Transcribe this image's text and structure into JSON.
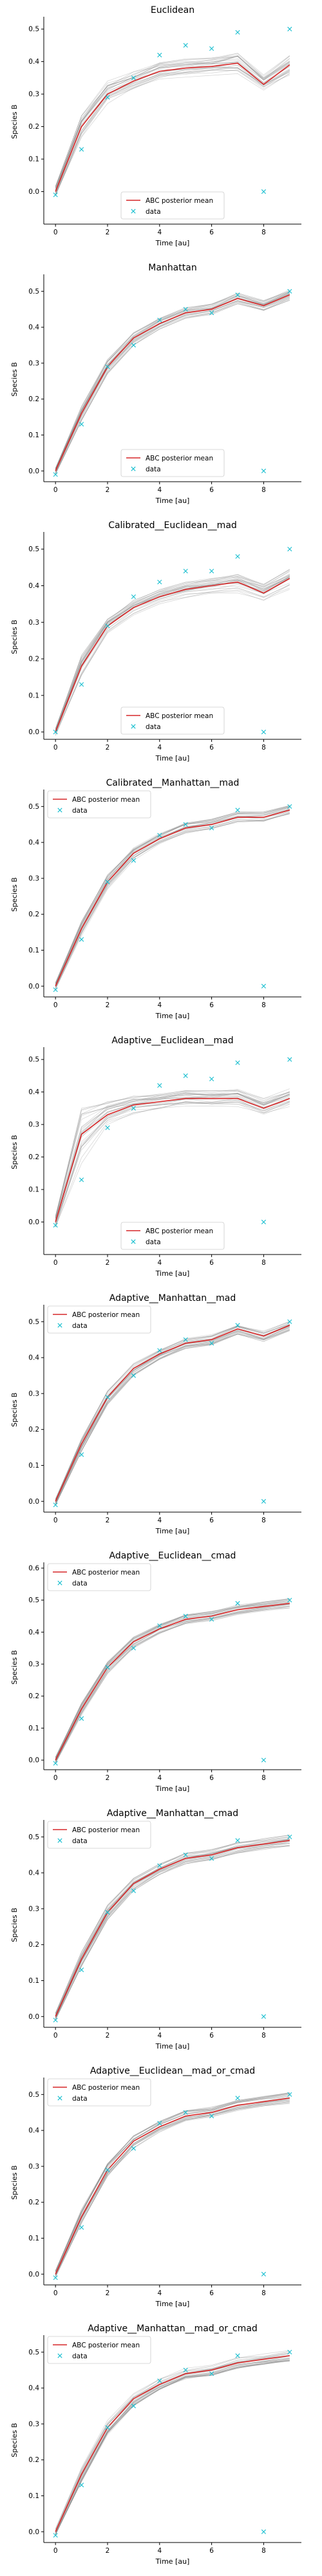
{
  "chart_data": [
    {
      "type": "line",
      "title": "Euclidean",
      "xlabel": "Time [au]",
      "ylabel": "Species B",
      "xlim": [
        -0.45,
        9.45
      ],
      "ylim": [
        -0.1,
        0.53
      ],
      "yticks": [
        0.0,
        0.1,
        0.2,
        0.3,
        0.4,
        0.5
      ],
      "xticks": [
        0,
        2,
        4,
        6,
        8
      ],
      "legend_position": "lower-center",
      "x": [
        0,
        1,
        2,
        3,
        4,
        5,
        6,
        7,
        8,
        9
      ],
      "series": [
        {
          "name": "ABC posterior mean",
          "values": [
            0.0,
            0.2,
            0.3,
            0.34,
            0.37,
            0.38,
            0.385,
            0.395,
            0.33,
            0.39
          ]
        },
        {
          "name": "data",
          "values": [
            -0.01,
            0.13,
            0.29,
            0.35,
            0.42,
            0.45,
            0.44,
            0.49,
            0.0,
            0.5
          ]
        }
      ],
      "band": {
        "lower": [
          -0.02,
          0.16,
          0.27,
          0.31,
          0.34,
          0.35,
          0.355,
          0.36,
          0.31,
          0.35
        ],
        "upper": [
          0.02,
          0.24,
          0.34,
          0.37,
          0.4,
          0.41,
          0.415,
          0.43,
          0.36,
          0.42
        ]
      }
    },
    {
      "type": "line",
      "title": "Manhattan",
      "xlabel": "Time [au]",
      "ylabel": "Species B",
      "xlim": [
        -0.45,
        9.45
      ],
      "ylim": [
        -0.03,
        0.54
      ],
      "yticks": [
        0.0,
        0.1,
        0.2,
        0.3,
        0.4,
        0.5
      ],
      "xticks": [
        0,
        2,
        4,
        6,
        8
      ],
      "legend_position": "lower-center",
      "x": [
        0,
        1,
        2,
        3,
        4,
        5,
        6,
        7,
        8,
        9
      ],
      "series": [
        {
          "name": "ABC posterior mean",
          "values": [
            0.0,
            0.16,
            0.29,
            0.37,
            0.41,
            0.44,
            0.45,
            0.48,
            0.46,
            0.49
          ]
        },
        {
          "name": "data",
          "values": [
            -0.01,
            0.13,
            0.29,
            0.35,
            0.42,
            0.45,
            0.44,
            0.49,
            0.0,
            0.5
          ]
        }
      ],
      "band": {
        "lower": [
          -0.01,
          0.14,
          0.27,
          0.35,
          0.395,
          0.425,
          0.435,
          0.465,
          0.445,
          0.475
        ],
        "upper": [
          0.01,
          0.18,
          0.31,
          0.385,
          0.425,
          0.455,
          0.465,
          0.495,
          0.475,
          0.505
        ]
      }
    },
    {
      "type": "line",
      "title": "Calibrated__Euclidean__mad",
      "xlabel": "Time [au]",
      "ylabel": "Species B",
      "xlim": [
        -0.45,
        9.45
      ],
      "ylim": [
        -0.02,
        0.54
      ],
      "yticks": [
        0.0,
        0.1,
        0.2,
        0.3,
        0.4,
        0.5
      ],
      "xticks": [
        0,
        2,
        4,
        6,
        8
      ],
      "legend_position": "lower-center",
      "x": [
        0,
        1,
        2,
        3,
        4,
        5,
        6,
        7,
        8,
        9
      ],
      "series": [
        {
          "name": "ABC posterior mean",
          "values": [
            0.0,
            0.18,
            0.29,
            0.34,
            0.37,
            0.39,
            0.4,
            0.41,
            0.38,
            0.42
          ]
        },
        {
          "name": "data",
          "values": [
            0.0,
            0.13,
            0.29,
            0.37,
            0.41,
            0.44,
            0.44,
            0.48,
            0.0,
            0.5
          ]
        }
      ],
      "band": {
        "lower": [
          -0.01,
          0.15,
          0.27,
          0.32,
          0.35,
          0.365,
          0.375,
          0.38,
          0.355,
          0.39
        ],
        "upper": [
          0.01,
          0.21,
          0.31,
          0.36,
          0.39,
          0.41,
          0.42,
          0.435,
          0.405,
          0.445
        ]
      }
    },
    {
      "type": "line",
      "title": "Calibrated__Manhattan__mad",
      "xlabel": "Time [au]",
      "ylabel": "Species B",
      "xlim": [
        -0.45,
        9.45
      ],
      "ylim": [
        -0.03,
        0.54
      ],
      "yticks": [
        0.0,
        0.1,
        0.2,
        0.3,
        0.4,
        0.5
      ],
      "xticks": [
        0,
        2,
        4,
        6,
        8
      ],
      "legend_position": "upper-left",
      "x": [
        0,
        1,
        2,
        3,
        4,
        5,
        6,
        7,
        8,
        9
      ],
      "series": [
        {
          "name": "ABC posterior mean",
          "values": [
            0.0,
            0.16,
            0.29,
            0.37,
            0.41,
            0.44,
            0.45,
            0.47,
            0.47,
            0.49
          ]
        },
        {
          "name": "data",
          "values": [
            -0.01,
            0.13,
            0.29,
            0.35,
            0.42,
            0.45,
            0.44,
            0.49,
            0.0,
            0.5
          ]
        }
      ],
      "band": {
        "lower": [
          -0.01,
          0.14,
          0.27,
          0.35,
          0.395,
          0.425,
          0.435,
          0.455,
          0.455,
          0.475
        ],
        "upper": [
          0.01,
          0.18,
          0.31,
          0.385,
          0.425,
          0.455,
          0.465,
          0.485,
          0.485,
          0.505
        ]
      }
    },
    {
      "type": "line",
      "title": "Adaptive__Euclidean__mad",
      "xlabel": "Time [au]",
      "ylabel": "Species B",
      "xlim": [
        -0.45,
        9.45
      ],
      "ylim": [
        -0.1,
        0.53
      ],
      "yticks": [
        0.0,
        0.1,
        0.2,
        0.3,
        0.4,
        0.5
      ],
      "xticks": [
        0,
        2,
        4,
        6,
        8
      ],
      "legend_position": "lower-center",
      "x": [
        0,
        1,
        2,
        3,
        4,
        5,
        6,
        7,
        8,
        9
      ],
      "series": [
        {
          "name": "ABC posterior mean",
          "values": [
            0.0,
            0.27,
            0.33,
            0.36,
            0.37,
            0.38,
            0.38,
            0.38,
            0.35,
            0.38
          ]
        },
        {
          "name": "data",
          "values": [
            -0.01,
            0.13,
            0.29,
            0.35,
            0.42,
            0.45,
            0.44,
            0.49,
            0.0,
            0.5
          ]
        }
      ],
      "band": {
        "lower": [
          -0.02,
          0.18,
          0.3,
          0.33,
          0.345,
          0.355,
          0.355,
          0.355,
          0.325,
          0.355
        ],
        "upper": [
          0.02,
          0.35,
          0.37,
          0.39,
          0.395,
          0.405,
          0.405,
          0.41,
          0.38,
          0.41
        ]
      }
    },
    {
      "type": "line",
      "title": "Adaptive__Manhattan__mad",
      "xlabel": "Time [au]",
      "ylabel": "Species B",
      "xlim": [
        -0.45,
        9.45
      ],
      "ylim": [
        -0.03,
        0.54
      ],
      "yticks": [
        0.0,
        0.1,
        0.2,
        0.3,
        0.4,
        0.5
      ],
      "xticks": [
        0,
        2,
        4,
        6,
        8
      ],
      "legend_position": "upper-left",
      "x": [
        0,
        1,
        2,
        3,
        4,
        5,
        6,
        7,
        8,
        9
      ],
      "series": [
        {
          "name": "ABC posterior mean",
          "values": [
            0.0,
            0.16,
            0.29,
            0.37,
            0.41,
            0.44,
            0.45,
            0.48,
            0.46,
            0.49
          ]
        },
        {
          "name": "data",
          "values": [
            -0.01,
            0.13,
            0.29,
            0.35,
            0.42,
            0.45,
            0.44,
            0.49,
            0.0,
            0.5
          ]
        }
      ],
      "band": {
        "lower": [
          -0.01,
          0.14,
          0.27,
          0.35,
          0.395,
          0.425,
          0.435,
          0.465,
          0.445,
          0.475
        ],
        "upper": [
          0.01,
          0.18,
          0.31,
          0.385,
          0.425,
          0.455,
          0.465,
          0.495,
          0.475,
          0.505
        ]
      }
    },
    {
      "type": "line",
      "title": "Adaptive__Euclidean__cmad",
      "xlabel": "Time [au]",
      "ylabel": "Species B",
      "xlim": [
        -0.45,
        9.45
      ],
      "ylim": [
        -0.03,
        0.61
      ],
      "yticks": [
        0.0,
        0.1,
        0.2,
        0.3,
        0.4,
        0.5,
        0.6
      ],
      "xticks": [
        0,
        2,
        4,
        6,
        8
      ],
      "legend_position": "upper-left",
      "x": [
        0,
        1,
        2,
        3,
        4,
        5,
        6,
        7,
        8,
        9
      ],
      "series": [
        {
          "name": "ABC posterior mean",
          "values": [
            0.0,
            0.16,
            0.29,
            0.37,
            0.41,
            0.44,
            0.45,
            0.47,
            0.48,
            0.49
          ]
        },
        {
          "name": "data",
          "values": [
            -0.01,
            0.13,
            0.29,
            0.35,
            0.42,
            0.45,
            0.44,
            0.49,
            0.0,
            0.5
          ]
        }
      ],
      "band": {
        "lower": [
          -0.01,
          0.14,
          0.27,
          0.35,
          0.395,
          0.425,
          0.435,
          0.455,
          0.465,
          0.475
        ],
        "upper": [
          0.01,
          0.18,
          0.31,
          0.385,
          0.425,
          0.455,
          0.465,
          0.485,
          0.495,
          0.505
        ]
      }
    },
    {
      "type": "line",
      "title": "Adaptive__Manhattan__cmad",
      "xlabel": "Time [au]",
      "ylabel": "Species B",
      "xlim": [
        -0.45,
        9.45
      ],
      "ylim": [
        -0.03,
        0.54
      ],
      "yticks": [
        0.0,
        0.1,
        0.2,
        0.3,
        0.4,
        0.5
      ],
      "xticks": [
        0,
        2,
        4,
        6,
        8
      ],
      "legend_position": "upper-left",
      "x": [
        0,
        1,
        2,
        3,
        4,
        5,
        6,
        7,
        8,
        9
      ],
      "series": [
        {
          "name": "ABC posterior mean",
          "values": [
            0.0,
            0.16,
            0.29,
            0.37,
            0.41,
            0.44,
            0.45,
            0.47,
            0.48,
            0.49
          ]
        },
        {
          "name": "data",
          "values": [
            -0.01,
            0.13,
            0.29,
            0.35,
            0.42,
            0.45,
            0.44,
            0.49,
            0.0,
            0.5
          ]
        }
      ],
      "band": {
        "lower": [
          -0.01,
          0.14,
          0.27,
          0.35,
          0.395,
          0.425,
          0.435,
          0.455,
          0.465,
          0.475
        ],
        "upper": [
          0.01,
          0.18,
          0.31,
          0.385,
          0.425,
          0.455,
          0.465,
          0.485,
          0.495,
          0.505
        ]
      }
    },
    {
      "type": "line",
      "title": "Adaptive__Euclidean__mad_or_cmad",
      "xlabel": "Time [au]",
      "ylabel": "Species B",
      "xlim": [
        -0.45,
        9.45
      ],
      "ylim": [
        -0.03,
        0.54
      ],
      "yticks": [
        0.0,
        0.1,
        0.2,
        0.3,
        0.4,
        0.5
      ],
      "xticks": [
        0,
        2,
        4,
        6,
        8
      ],
      "legend_position": "upper-left",
      "x": [
        0,
        1,
        2,
        3,
        4,
        5,
        6,
        7,
        8,
        9
      ],
      "series": [
        {
          "name": "ABC posterior mean",
          "values": [
            0.0,
            0.16,
            0.29,
            0.37,
            0.41,
            0.44,
            0.45,
            0.47,
            0.48,
            0.49
          ]
        },
        {
          "name": "data",
          "values": [
            -0.01,
            0.13,
            0.29,
            0.35,
            0.42,
            0.45,
            0.44,
            0.49,
            0.0,
            0.5
          ]
        }
      ],
      "band": {
        "lower": [
          -0.01,
          0.14,
          0.27,
          0.35,
          0.395,
          0.425,
          0.435,
          0.455,
          0.465,
          0.475
        ],
        "upper": [
          0.01,
          0.18,
          0.31,
          0.385,
          0.425,
          0.455,
          0.465,
          0.485,
          0.495,
          0.505
        ]
      }
    },
    {
      "type": "line",
      "title": "Adaptive__Manhattan__mad_or_cmad",
      "xlabel": "Time [au]",
      "ylabel": "Species B",
      "xlim": [
        -0.45,
        9.45
      ],
      "ylim": [
        -0.03,
        0.54
      ],
      "yticks": [
        0.0,
        0.1,
        0.2,
        0.3,
        0.4,
        0.5
      ],
      "xticks": [
        0,
        2,
        4,
        6,
        8
      ],
      "legend_position": "upper-left",
      "x": [
        0,
        1,
        2,
        3,
        4,
        5,
        6,
        7,
        8,
        9
      ],
      "series": [
        {
          "name": "ABC posterior mean",
          "values": [
            0.0,
            0.16,
            0.29,
            0.37,
            0.41,
            0.44,
            0.45,
            0.47,
            0.48,
            0.49
          ]
        },
        {
          "name": "data",
          "values": [
            -0.01,
            0.13,
            0.29,
            0.35,
            0.42,
            0.45,
            0.44,
            0.49,
            0.0,
            0.5
          ]
        }
      ],
      "band": {
        "lower": [
          -0.01,
          0.14,
          0.27,
          0.35,
          0.395,
          0.425,
          0.435,
          0.455,
          0.465,
          0.475
        ],
        "upper": [
          0.01,
          0.18,
          0.31,
          0.385,
          0.425,
          0.455,
          0.465,
          0.485,
          0.495,
          0.505
        ]
      }
    }
  ],
  "colors": {
    "posterior_mean": "#d62728",
    "data": "#17becf",
    "samples": "#808080",
    "axis": "#000000"
  }
}
